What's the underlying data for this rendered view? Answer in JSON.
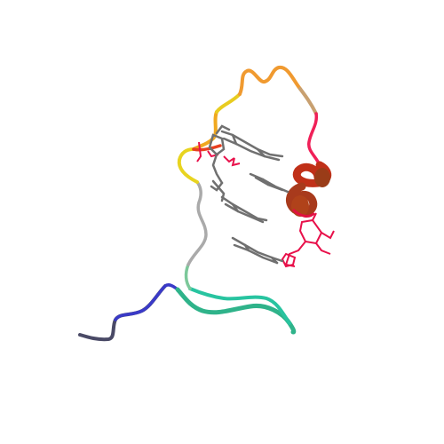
{
  "scene": {
    "background": "#ffffff",
    "subject": "protein-ribbon-cartoon",
    "colors": {
      "n_terminus": "#555566",
      "blue": "#4444cc",
      "teal": "#33bb88",
      "gray_coil": "#aaaaaa",
      "yellow": "#e8d020",
      "orange": "#f0a020",
      "tan": "#c8a070",
      "red": "#e01050",
      "helix": "#b8441c",
      "ligand": "#777777"
    }
  }
}
